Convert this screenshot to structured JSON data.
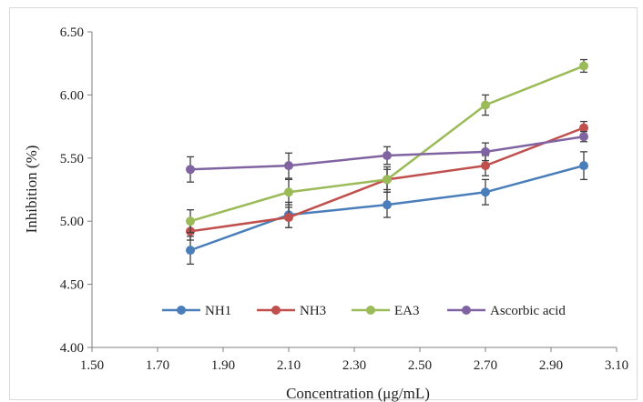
{
  "chart_data": {
    "type": "line",
    "title": "",
    "xlabel": "Concentration (μg/mL)",
    "ylabel": "Inhibition (%)",
    "xlim": [
      1.5,
      3.1
    ],
    "ylim": [
      4.0,
      6.5
    ],
    "x_ticks": [
      "1.50",
      "1.70",
      "1.90",
      "2.10",
      "2.30",
      "2.50",
      "2.70",
      "2.90",
      "3.10"
    ],
    "y_ticks": [
      "4.00",
      "4.50",
      "5.00",
      "5.50",
      "6.00",
      "6.50"
    ],
    "grid": false,
    "legend_position": "inside-bottom",
    "x": [
      1.8,
      2.1,
      2.4,
      2.7,
      3.0
    ],
    "series": [
      {
        "name": "NH1",
        "color": "#4a7ebb",
        "values": [
          4.77,
          5.05,
          5.13,
          5.23,
          5.44
        ],
        "errors": [
          0.11,
          0.1,
          0.1,
          0.1,
          0.11
        ]
      },
      {
        "name": "NH3",
        "color": "#c0504d",
        "values": [
          4.92,
          5.03,
          5.33,
          5.44,
          5.74
        ],
        "errors": [
          0.07,
          0.08,
          0.08,
          0.08,
          0.05
        ]
      },
      {
        "name": "EA3",
        "color": "#9bbb59",
        "values": [
          5.0,
          5.23,
          5.33,
          5.92,
          6.23
        ],
        "errors": [
          0.09,
          0.1,
          0.1,
          0.08,
          0.05
        ]
      },
      {
        "name": "Ascorbic acid",
        "color": "#8064a2",
        "values": [
          5.41,
          5.44,
          5.52,
          5.55,
          5.67
        ],
        "errors": [
          0.1,
          0.1,
          0.07,
          0.07,
          0.04
        ]
      }
    ]
  }
}
